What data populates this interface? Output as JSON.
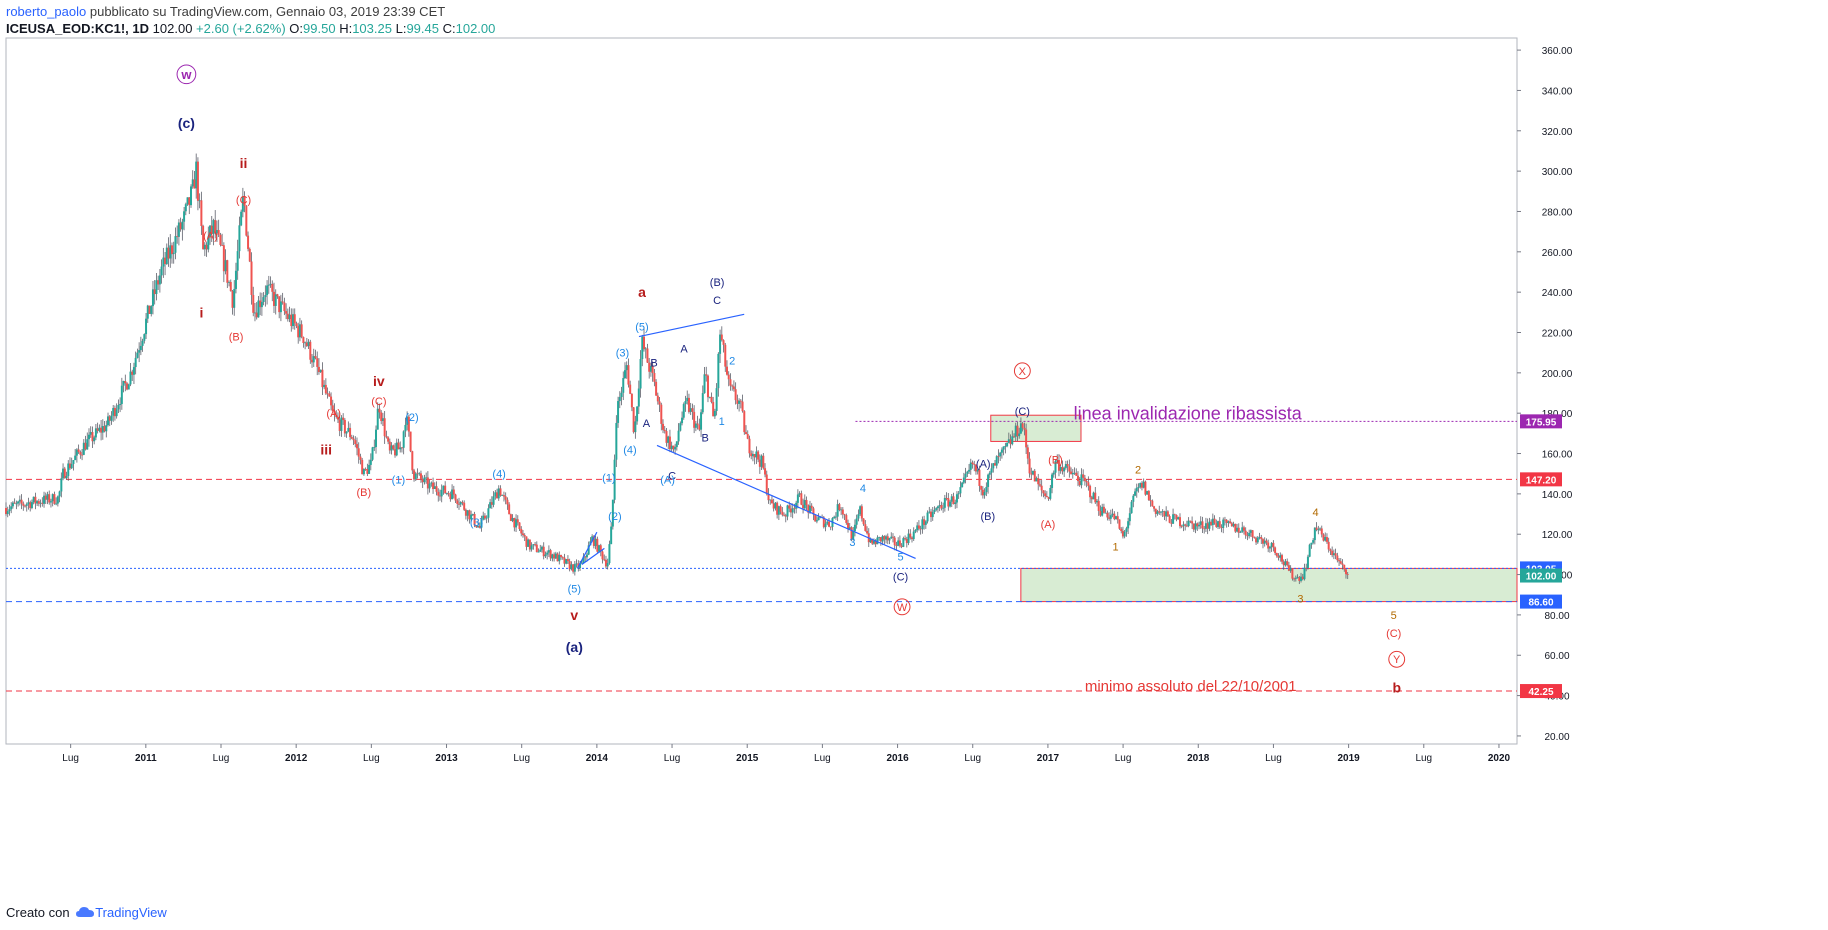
{
  "header": {
    "user": "roberto_paolo",
    "published": "pubblicato su TradingView.com, Gennaio 03, 2019 23:39 CET",
    "symbol": "ICEUSA_EOD:KC1!, 1D",
    "last": "102.00",
    "change": "+2.60 (+2.62%)",
    "o_label": "O:",
    "o_value": "99.50",
    "h_label": "H:",
    "h_value": "103.25",
    "l_label": "L:",
    "l_value": "99.45",
    "c_label": "C:",
    "c_value": "102.00"
  },
  "footer": {
    "text": "Creato con",
    "brand": "TradingView"
  },
  "colors": {
    "up": "#26a69a",
    "down": "#ef5350",
    "wick": "#5d606b"
  },
  "chart_data": {
    "type": "candlestick",
    "title": "ICEUSA_EOD:KC1!, 1D",
    "x_ticks": [
      {
        "label": "Lug",
        "t": 2010.5
      },
      {
        "label": "2011",
        "t": 2011.0
      },
      {
        "label": "Lug",
        "t": 2011.5
      },
      {
        "label": "2012",
        "t": 2012.0
      },
      {
        "label": "Lug",
        "t": 2012.5
      },
      {
        "label": "2013",
        "t": 2013.0
      },
      {
        "label": "Lug",
        "t": 2013.5
      },
      {
        "label": "2014",
        "t": 2014.0
      },
      {
        "label": "Lug",
        "t": 2014.5
      },
      {
        "label": "2015",
        "t": 2015.0
      },
      {
        "label": "Lug",
        "t": 2015.5
      },
      {
        "label": "2016",
        "t": 2016.0
      },
      {
        "label": "Lug",
        "t": 2016.5
      },
      {
        "label": "2017",
        "t": 2017.0
      },
      {
        "label": "Lug",
        "t": 2017.5
      },
      {
        "label": "2018",
        "t": 2018.0
      },
      {
        "label": "Lug",
        "t": 2018.5
      },
      {
        "label": "2019",
        "t": 2019.0
      },
      {
        "label": "Lug",
        "t": 2019.5
      },
      {
        "label": "2020",
        "t": 2020.0
      }
    ],
    "xlim": [
      2010.07,
      2020.12
    ],
    "y_ticks": [
      "20.00",
      "40.00",
      "60.00",
      "80.00",
      "100.00",
      "120.00",
      "140.00",
      "160.00",
      "180.00",
      "200.00",
      "220.00",
      "240.00",
      "260.00",
      "280.00",
      "300.00",
      "320.00",
      "340.00",
      "360.00"
    ],
    "ylim": [
      16,
      366
    ],
    "price_path": [
      [
        2010.07,
        133
      ],
      [
        2010.25,
        136
      ],
      [
        2010.42,
        138
      ],
      [
        2010.45,
        150
      ],
      [
        2010.6,
        165
      ],
      [
        2010.75,
        175
      ],
      [
        2010.9,
        200
      ],
      [
        2011.0,
        225
      ],
      [
        2011.1,
        250
      ],
      [
        2011.25,
        275
      ],
      [
        2011.32,
        292
      ],
      [
        2011.33,
        305
      ],
      [
        2011.38,
        260
      ],
      [
        2011.45,
        272
      ],
      [
        2011.52,
        255
      ],
      [
        2011.58,
        236
      ],
      [
        2011.65,
        288
      ],
      [
        2011.72,
        230
      ],
      [
        2011.8,
        242
      ],
      [
        2011.9,
        232
      ],
      [
        2012.05,
        218
      ],
      [
        2012.15,
        200
      ],
      [
        2012.25,
        178
      ],
      [
        2012.38,
        168
      ],
      [
        2012.45,
        150
      ],
      [
        2012.5,
        155
      ],
      [
        2012.55,
        185
      ],
      [
        2012.62,
        160
      ],
      [
        2012.7,
        163
      ],
      [
        2012.73,
        180
      ],
      [
        2012.78,
        150
      ],
      [
        2012.9,
        143
      ],
      [
        2013.05,
        140
      ],
      [
        2013.22,
        123
      ],
      [
        2013.35,
        143
      ],
      [
        2013.42,
        130
      ],
      [
        2013.55,
        114
      ],
      [
        2013.7,
        110
      ],
      [
        2013.85,
        103
      ],
      [
        2013.9,
        105
      ],
      [
        2013.97,
        118
      ],
      [
        2014.07,
        105
      ],
      [
        2014.1,
        125
      ],
      [
        2014.13,
        180
      ],
      [
        2014.2,
        204
      ],
      [
        2014.25,
        170
      ],
      [
        2014.3,
        215
      ],
      [
        2014.38,
        195
      ],
      [
        2014.45,
        170
      ],
      [
        2014.52,
        160
      ],
      [
        2014.55,
        175
      ],
      [
        2014.6,
        185
      ],
      [
        2014.68,
        170
      ],
      [
        2014.72,
        200
      ],
      [
        2014.78,
        175
      ],
      [
        2014.82,
        220
      ],
      [
        2014.88,
        192
      ],
      [
        2014.95,
        185
      ],
      [
        2015.0,
        165
      ],
      [
        2015.1,
        155
      ],
      [
        2015.15,
        135
      ],
      [
        2015.25,
        130
      ],
      [
        2015.35,
        138
      ],
      [
        2015.45,
        128
      ],
      [
        2015.55,
        125
      ],
      [
        2015.62,
        135
      ],
      [
        2015.7,
        118
      ],
      [
        2015.75,
        132
      ],
      [
        2015.82,
        115
      ],
      [
        2015.9,
        118
      ],
      [
        2016.0,
        115
      ],
      [
        2016.1,
        120
      ],
      [
        2016.2,
        128
      ],
      [
        2016.3,
        135
      ],
      [
        2016.4,
        138
      ],
      [
        2016.5,
        155
      ],
      [
        2016.57,
        142
      ],
      [
        2016.65,
        155
      ],
      [
        2016.72,
        162
      ],
      [
        2016.8,
        172
      ],
      [
        2016.83,
        175
      ],
      [
        2016.88,
        152
      ],
      [
        2016.95,
        142
      ],
      [
        2017.0,
        138
      ],
      [
        2017.05,
        156
      ],
      [
        2017.12,
        152
      ],
      [
        2017.25,
        145
      ],
      [
        2017.35,
        132
      ],
      [
        2017.45,
        128
      ],
      [
        2017.5,
        118
      ],
      [
        2017.58,
        140
      ],
      [
        2017.63,
        145
      ],
      [
        2017.7,
        133
      ],
      [
        2017.8,
        128
      ],
      [
        2017.9,
        126
      ],
      [
        2018.0,
        124
      ],
      [
        2018.1,
        126
      ],
      [
        2018.2,
        124
      ],
      [
        2018.3,
        122
      ],
      [
        2018.4,
        118
      ],
      [
        2018.5,
        114
      ],
      [
        2018.6,
        102
      ],
      [
        2018.65,
        98
      ],
      [
        2018.7,
        100
      ],
      [
        2018.78,
        124
      ],
      [
        2018.85,
        116
      ],
      [
        2018.9,
        110
      ],
      [
        2018.97,
        102
      ],
      [
        2019.0,
        102
      ]
    ],
    "horizontal_levels": [
      {
        "value": 175.95,
        "label": "175.95",
        "color": "#9c27b0",
        "style": "dotted"
      },
      {
        "value": 147.2,
        "label": "147.20",
        "color": "#f23645",
        "style": "dashed"
      },
      {
        "value": 103.05,
        "label": "103.05",
        "color": "#2962ff",
        "style": "dotted"
      },
      {
        "value": 102.0,
        "label": "102.00",
        "color": "#26a69a",
        "style": "solid"
      },
      {
        "value": 86.6,
        "label": "86.60",
        "color": "#2962ff",
        "style": "dashed"
      },
      {
        "value": 42.25,
        "label": "42.25",
        "color": "#f23645",
        "style": "dashed"
      }
    ],
    "annotations": [
      {
        "text": "w",
        "t": 2011.27,
        "p": 348,
        "color": "#9c27b0",
        "bold": true,
        "circle": true,
        "size": 13
      },
      {
        "text": "(c)",
        "t": 2011.27,
        "p": 324,
        "color": "#1a237e",
        "bold": true,
        "size": 14
      },
      {
        "text": "ii",
        "t": 2011.65,
        "p": 304,
        "color": "#b71c1c",
        "bold": true,
        "size": 14
      },
      {
        "text": "(C)",
        "t": 2011.65,
        "p": 286,
        "color": "#e53935",
        "size": 11
      },
      {
        "text": "(A)",
        "t": 2011.43,
        "p": 268,
        "color": "#e53935",
        "size": 11
      },
      {
        "text": "i",
        "t": 2011.37,
        "p": 230,
        "color": "#b71c1c",
        "bold": true,
        "size": 14
      },
      {
        "text": "(B)",
        "t": 2011.6,
        "p": 218,
        "color": "#e53935",
        "size": 11
      },
      {
        "text": "iv",
        "t": 2012.55,
        "p": 196,
        "color": "#b71c1c",
        "bold": true,
        "size": 14
      },
      {
        "text": "(C)",
        "t": 2012.55,
        "p": 186,
        "color": "#e53935",
        "size": 11
      },
      {
        "text": "(A)",
        "t": 2012.25,
        "p": 180,
        "color": "#e53935",
        "size": 11
      },
      {
        "text": "(2)",
        "t": 2012.77,
        "p": 178,
        "color": "#1e88e5",
        "size": 11
      },
      {
        "text": "iii",
        "t": 2012.2,
        "p": 162,
        "color": "#b71c1c",
        "bold": true,
        "size": 14
      },
      {
        "text": "(1)",
        "t": 2012.68,
        "p": 147,
        "color": "#1e88e5",
        "size": 11
      },
      {
        "text": "(B)",
        "t": 2012.45,
        "p": 141,
        "color": "#e53935",
        "size": 11
      },
      {
        "text": "(4)",
        "t": 2013.35,
        "p": 150,
        "color": "#1e88e5",
        "size": 11
      },
      {
        "text": "(3)",
        "t": 2013.2,
        "p": 126,
        "color": "#1e88e5",
        "size": 11
      },
      {
        "text": "(5)",
        "t": 2013.85,
        "p": 93,
        "color": "#1e88e5",
        "size": 11
      },
      {
        "text": "v",
        "t": 2013.85,
        "p": 80,
        "color": "#b71c1c",
        "bold": true,
        "size": 14
      },
      {
        "text": "(a)",
        "t": 2013.85,
        "p": 64,
        "color": "#1a237e",
        "bold": true,
        "size": 14
      },
      {
        "text": "(1)",
        "t": 2014.08,
        "p": 148,
        "color": "#1e88e5",
        "size": 11
      },
      {
        "text": "(2)",
        "t": 2014.12,
        "p": 129,
        "color": "#1e88e5",
        "size": 11
      },
      {
        "text": "(3)",
        "t": 2014.17,
        "p": 210,
        "color": "#1e88e5",
        "size": 11
      },
      {
        "text": "(4)",
        "t": 2014.22,
        "p": 162,
        "color": "#1e88e5",
        "size": 11
      },
      {
        "text": "(5)",
        "t": 2014.3,
        "p": 223,
        "color": "#1e88e5",
        "size": 11
      },
      {
        "text": "a",
        "t": 2014.3,
        "p": 240,
        "color": "#b71c1c",
        "bold": true,
        "size": 14
      },
      {
        "text": "B",
        "t": 2014.38,
        "p": 205,
        "color": "#1a237e",
        "size": 11
      },
      {
        "text": "A",
        "t": 2014.33,
        "p": 175,
        "color": "#1a237e",
        "size": 11
      },
      {
        "text": "C",
        "t": 2014.5,
        "p": 149,
        "color": "#1a237e",
        "size": 11
      },
      {
        "text": "(A)",
        "t": 2014.47,
        "p": 147,
        "color": "#1e88e5",
        "size": 11
      },
      {
        "text": "A",
        "t": 2014.58,
        "p": 212,
        "color": "#1a237e",
        "size": 11
      },
      {
        "text": "B",
        "t": 2014.72,
        "p": 168,
        "color": "#1a237e",
        "size": 11
      },
      {
        "text": "(B)",
        "t": 2014.8,
        "p": 245,
        "color": "#1a237e",
        "size": 11
      },
      {
        "text": "C",
        "t": 2014.8,
        "p": 236,
        "color": "#1a237e",
        "size": 11
      },
      {
        "text": "2",
        "t": 2014.9,
        "p": 206,
        "color": "#1e88e5",
        "size": 11
      },
      {
        "text": "1",
        "t": 2014.83,
        "p": 176,
        "color": "#1e88e5",
        "size": 11
      },
      {
        "text": "4",
        "t": 2015.77,
        "p": 143,
        "color": "#1e88e5",
        "size": 11
      },
      {
        "text": "3",
        "t": 2015.7,
        "p": 116,
        "color": "#1e88e5",
        "size": 11
      },
      {
        "text": "5",
        "t": 2016.02,
        "p": 109,
        "color": "#1e88e5",
        "size": 11
      },
      {
        "text": "(C)",
        "t": 2016.02,
        "p": 99,
        "color": "#1a237e",
        "size": 11
      },
      {
        "text": "W",
        "t": 2016.03,
        "p": 84,
        "color": "#e53935",
        "circle": true,
        "size": 11
      },
      {
        "text": "X",
        "t": 2016.83,
        "p": 201,
        "color": "#e53935",
        "circle": true,
        "size": 11
      },
      {
        "text": "(C)",
        "t": 2016.83,
        "p": 181,
        "color": "#1a237e",
        "size": 11
      },
      {
        "text": "(A)",
        "t": 2016.57,
        "p": 155,
        "color": "#1a237e",
        "size": 11
      },
      {
        "text": "(B)",
        "t": 2016.6,
        "p": 129,
        "color": "#1a237e",
        "size": 11
      },
      {
        "text": "(B)",
        "t": 2017.05,
        "p": 157,
        "color": "#e53935",
        "size": 11
      },
      {
        "text": "(A)",
        "t": 2017.0,
        "p": 125,
        "color": "#e53935",
        "size": 11
      },
      {
        "text": "2",
        "t": 2017.6,
        "p": 152,
        "color": "#b26a00",
        "size": 11
      },
      {
        "text": "1",
        "t": 2017.45,
        "p": 114,
        "color": "#b26a00",
        "size": 11
      },
      {
        "text": "4",
        "t": 2018.78,
        "p": 131,
        "color": "#b26a00",
        "size": 11
      },
      {
        "text": "3",
        "t": 2018.68,
        "p": 88,
        "color": "#b26a00",
        "size": 11
      },
      {
        "text": "5",
        "t": 2019.3,
        "p": 80,
        "color": "#b26a00",
        "size": 11
      },
      {
        "text": "(C)",
        "t": 2019.3,
        "p": 71,
        "color": "#e53935",
        "size": 11
      },
      {
        "text": "Y",
        "t": 2019.32,
        "p": 58,
        "color": "#e53935",
        "circle": true,
        "size": 11
      },
      {
        "text": "b",
        "t": 2019.32,
        "p": 44,
        "color": "#b71c1c",
        "bold": true,
        "size": 14
      },
      {
        "text": "linea invalidazione ribassista",
        "t": 2017.93,
        "p": 180,
        "color": "#9c27b0",
        "size": 18
      },
      {
        "text": "minimo assoluto del 22/10/2001",
        "t": 2017.95,
        "p": 45,
        "color": "#e53935",
        "size": 15
      }
    ],
    "trend_lines": [
      {
        "from": [
          2014.28,
          218
        ],
        "to": [
          2014.98,
          229
        ],
        "color": "#2962ff"
      },
      {
        "from": [
          2014.4,
          164
        ],
        "to": [
          2016.12,
          108
        ],
        "color": "#2962ff"
      },
      {
        "from": [
          2013.87,
          103
        ],
        "to": [
          2014.0,
          121
        ],
        "color": "#2962ff"
      },
      {
        "from": [
          2013.9,
          105
        ],
        "to": [
          2014.05,
          113
        ],
        "color": "#2962ff"
      }
    ],
    "zones": [
      {
        "t1": 2016.62,
        "t2": 2017.22,
        "p1": 166,
        "p2": 179,
        "fill": "#d8ecd3",
        "stroke": "#f23645"
      },
      {
        "t1": 2016.82,
        "t2": 2020.12,
        "p1": 86.6,
        "p2": 103.05,
        "fill": "#d8ecd3",
        "stroke": "#f23645"
      }
    ]
  }
}
